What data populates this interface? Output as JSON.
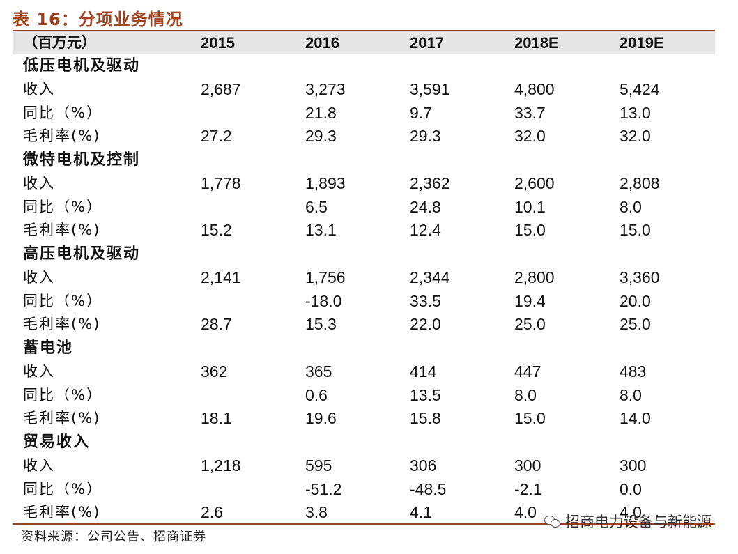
{
  "title": "表 16：分项业务情况",
  "header": {
    "label": "（百万元）",
    "years": [
      "2015",
      "2016",
      "2017",
      "2018E",
      "2019E"
    ]
  },
  "sections": [
    {
      "name": "低压电机及驱动",
      "rows": [
        {
          "label": "收入",
          "values": [
            "2,687",
            "3,273",
            "3,591",
            "4,800",
            "5,424"
          ]
        },
        {
          "label": "同比（%）",
          "values": [
            "",
            "21.8",
            "9.7",
            "33.7",
            "13.0"
          ]
        },
        {
          "label": "毛利率(%)",
          "values": [
            "27.2",
            "29.3",
            "29.3",
            "32.0",
            "32.0"
          ]
        }
      ]
    },
    {
      "name": "微特电机及控制",
      "rows": [
        {
          "label": "收入",
          "values": [
            "1,778",
            "1,893",
            "2,362",
            "2,600",
            "2,808"
          ]
        },
        {
          "label": "同比（%）",
          "values": [
            "",
            "6.5",
            "24.8",
            "10.1",
            "8.0"
          ]
        },
        {
          "label": "毛利率(%)",
          "values": [
            "15.2",
            "13.1",
            "12.4",
            "15.0",
            "15.0"
          ]
        }
      ]
    },
    {
      "name": "高压电机及驱动",
      "rows": [
        {
          "label": "收入",
          "values": [
            "2,141",
            "1,756",
            "2,344",
            "2,800",
            "3,360"
          ]
        },
        {
          "label": "同比（%）",
          "values": [
            "",
            "-18.0",
            "33.5",
            "19.4",
            "20.0"
          ]
        },
        {
          "label": "毛利率(%)",
          "values": [
            "28.7",
            "15.3",
            "22.0",
            "25.0",
            "25.0"
          ]
        }
      ]
    },
    {
      "name": "蓄电池",
      "rows": [
        {
          "label": "收入",
          "values": [
            "362",
            "365",
            "414",
            "447",
            "483"
          ]
        },
        {
          "label": "同比（%）",
          "values": [
            "",
            "0.6",
            "13.5",
            "8.0",
            "8.0"
          ]
        },
        {
          "label": "毛利率(%)",
          "values": [
            "18.1",
            "19.6",
            "15.8",
            "15.0",
            "14.0"
          ]
        }
      ]
    },
    {
      "name": "贸易收入",
      "rows": [
        {
          "label": "收入",
          "values": [
            "1,218",
            "595",
            "306",
            "300",
            "300"
          ]
        },
        {
          "label": "同比（%）",
          "values": [
            "",
            "-51.2",
            "-48.5",
            "-2.1",
            "0.0"
          ]
        },
        {
          "label": "毛利率(%)",
          "values": [
            "2.6",
            "3.8",
            "4.1",
            "4.0",
            "4.0"
          ]
        }
      ]
    }
  ],
  "source": "资料来源：公司公告、招商证券",
  "watermark": {
    "text": "招商电力设备与新能源",
    "icon": "wechat-icon"
  },
  "colors": {
    "accent": "#a0431f",
    "header_band": "#e6e6e6"
  }
}
